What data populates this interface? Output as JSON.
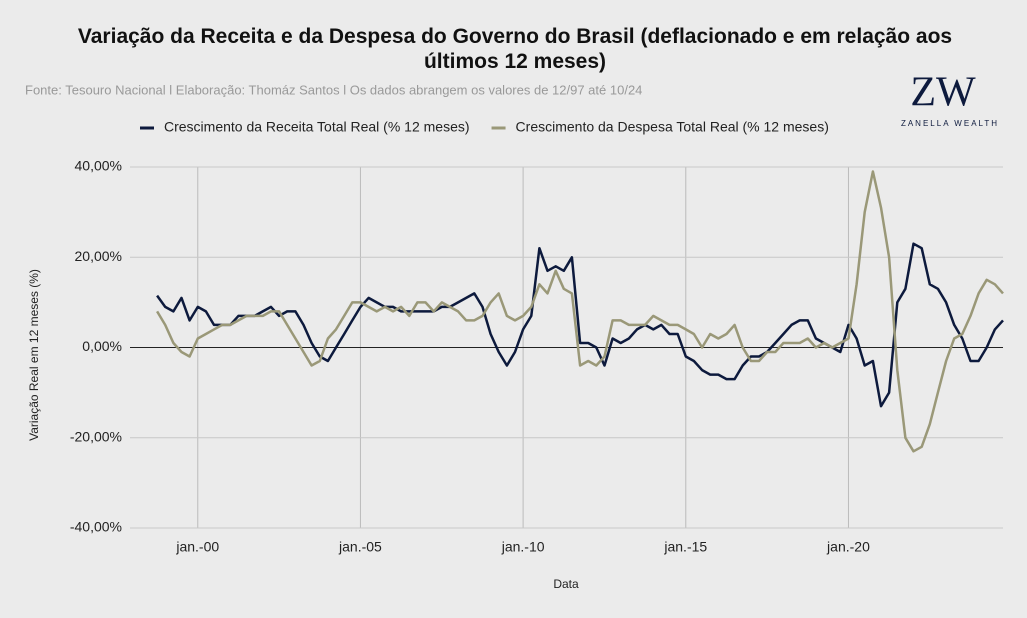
{
  "chart_data": {
    "type": "line",
    "title": "Variação da Receita e da Despesa do Governo do Brasil (deflacionado e em relação aos últimos 12 meses)",
    "subtitle": "Fonte: Tesouro Nacional l Elaboração: Thomáz Santos l Os dados abrangem os valores de 12/97 até 10/24",
    "logo": "ZW",
    "logo_text": "ZANELLA WEALTH",
    "x_label": "Data",
    "y_label": "Variação Real em 12 meses (%)",
    "x": [
      "1998-10",
      "1999-01",
      "1999-04",
      "1999-07",
      "1999-10",
      "2000-01",
      "2000-04",
      "2000-07",
      "2000-10",
      "2001-01",
      "2001-04",
      "2001-07",
      "2001-10",
      "2002-01",
      "2002-04",
      "2002-07",
      "2002-10",
      "2003-01",
      "2003-04",
      "2003-07",
      "2003-10",
      "2004-01",
      "2004-04",
      "2004-07",
      "2004-10",
      "2005-01",
      "2005-04",
      "2005-07",
      "2005-10",
      "2006-01",
      "2006-04",
      "2006-07",
      "2006-10",
      "2007-01",
      "2007-04",
      "2007-07",
      "2007-10",
      "2008-01",
      "2008-04",
      "2008-07",
      "2008-10",
      "2009-01",
      "2009-04",
      "2009-07",
      "2009-10",
      "2010-01",
      "2010-04",
      "2010-07",
      "2010-10",
      "2011-01",
      "2011-04",
      "2011-07",
      "2011-10",
      "2012-01",
      "2012-04",
      "2012-07",
      "2012-10",
      "2013-01",
      "2013-04",
      "2013-07",
      "2013-10",
      "2014-01",
      "2014-04",
      "2014-07",
      "2014-10",
      "2015-01",
      "2015-04",
      "2015-07",
      "2015-10",
      "2016-01",
      "2016-04",
      "2016-07",
      "2016-10",
      "2017-01",
      "2017-04",
      "2017-07",
      "2017-10",
      "2018-01",
      "2018-04",
      "2018-07",
      "2018-10",
      "2019-01",
      "2019-04",
      "2019-07",
      "2019-10",
      "2020-01",
      "2020-04",
      "2020-07",
      "2020-10",
      "2021-01",
      "2021-04",
      "2021-07",
      "2021-10",
      "2022-01",
      "2022-04",
      "2022-07",
      "2022-10",
      "2023-01",
      "2023-04",
      "2023-07",
      "2023-10",
      "2024-01",
      "2024-04",
      "2024-07",
      "2024-10"
    ],
    "series": [
      {
        "name": "Crescimento da Receita Total Real (% 12 meses)",
        "color": "#0d1a3d",
        "values": [
          11.5,
          9,
          8,
          11,
          6,
          9,
          8,
          5,
          5,
          5,
          7,
          7,
          7,
          8,
          9,
          7,
          8,
          8,
          5,
          1,
          -2,
          -3,
          0,
          3,
          6,
          9,
          11,
          10,
          9,
          9,
          8,
          8,
          8,
          8,
          8,
          9,
          9,
          10,
          11,
          12,
          9,
          3,
          -1,
          -4,
          -1,
          4,
          7,
          22,
          17,
          18,
          17,
          20,
          1,
          1,
          0,
          -4,
          2,
          1,
          2,
          4,
          5,
          4,
          5,
          3,
          3,
          -2,
          -3,
          -5,
          -6,
          -6,
          -7,
          -7,
          -4,
          -2,
          -2,
          -1,
          1,
          3,
          5,
          6,
          6,
          2,
          1,
          0,
          -1,
          5,
          2,
          -4,
          -3,
          -13,
          -10,
          10,
          13,
          23,
          22,
          14,
          13,
          10,
          5,
          2,
          -3,
          -3,
          0,
          4,
          6
        ]
      },
      {
        "name": "Crescimento da Despesa Total Real (% 12 meses)",
        "color": "#9a9878",
        "values": [
          8,
          5,
          1,
          -1,
          -2,
          2,
          3,
          4,
          5,
          5,
          6,
          7,
          7,
          7,
          8,
          8,
          5,
          2,
          -1,
          -4,
          -3,
          2,
          4,
          7,
          10,
          10,
          9,
          8,
          9,
          8,
          9,
          7,
          10,
          10,
          8,
          10,
          9,
          8,
          6,
          6,
          7,
          10,
          12,
          7,
          6,
          7,
          9,
          14,
          12,
          17,
          13,
          12,
          -4,
          -3,
          -4,
          -2,
          6,
          6,
          5,
          5,
          5,
          7,
          6,
          5,
          5,
          4,
          3,
          0,
          3,
          2,
          3,
          5,
          0,
          -3,
          -3,
          -1,
          -1,
          1,
          1,
          1,
          2,
          0,
          1,
          0,
          1,
          2,
          14,
          30,
          39,
          31,
          20,
          -5,
          -20,
          -23,
          -22,
          -17,
          -10,
          -3,
          2,
          3,
          7,
          12,
          15,
          14,
          12
        ]
      }
    ],
    "xlim": [
      "1997-12",
      "2024-10"
    ],
    "xticks": [
      {
        "value": "2000-01",
        "label": "jan.-00"
      },
      {
        "value": "2005-01",
        "label": "jan.-05"
      },
      {
        "value": "2010-01",
        "label": "jan.-10"
      },
      {
        "value": "2015-01",
        "label": "jan.-15"
      },
      {
        "value": "2020-01",
        "label": "jan.-20"
      }
    ],
    "ylim": [
      -40,
      40
    ],
    "yticks": [
      {
        "value": -40,
        "label": "-40,00%"
      },
      {
        "value": -20,
        "label": "-20,00%"
      },
      {
        "value": 0,
        "label": "0,00%"
      },
      {
        "value": 20,
        "label": "20,00%"
      },
      {
        "value": 40,
        "label": "40,00%"
      }
    ],
    "grid": true
  }
}
